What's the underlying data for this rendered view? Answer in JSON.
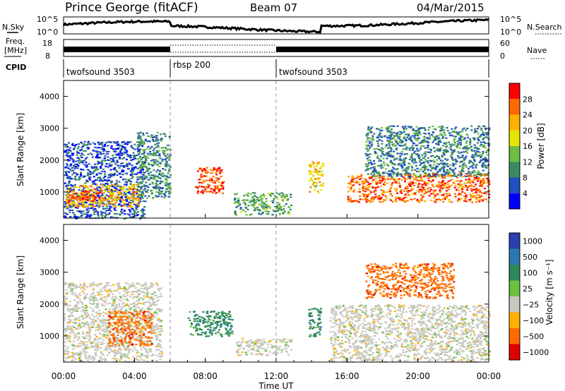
{
  "header": {
    "station": "Prince George (fitACF)",
    "beam": "Beam 07",
    "date": "04/Mar/2015"
  },
  "noise_panel": {
    "left_label": "N.Sky",
    "right_label": "N.Search",
    "left_ticks": [
      "10^5",
      "10^0"
    ],
    "right_ticks": [
      "10^5",
      "10^0"
    ]
  },
  "freq_panel": {
    "left_label": "Freq.",
    "left_unit": "[MHz]",
    "left_ticks": [
      "18",
      "8"
    ],
    "right_label": "Nave",
    "right_ticks": [
      "60",
      "0"
    ]
  },
  "cpid_panel": {
    "label": "CPID",
    "segments": [
      {
        "name": "twofsound 3503",
        "start": 0,
        "end": 6
      },
      {
        "name": "rbsp 200",
        "start": 6,
        "end": 12
      },
      {
        "name": "twofsound 3503",
        "start": 12,
        "end": 24
      }
    ]
  },
  "time_axis": {
    "label": "Time UT",
    "ticks": [
      "00:00",
      "04:00",
      "08:00",
      "12:00",
      "16:00",
      "20:00",
      "00:00"
    ]
  },
  "power_panel": {
    "ylabel": "Slant Range [km]",
    "yticks": [
      "1000",
      "2000",
      "3000",
      "4000"
    ],
    "colorbar_label": "Power [dB]",
    "colorbar_ticks": [
      "4",
      "8",
      "12",
      "16",
      "20",
      "24",
      "28"
    ],
    "colors": [
      "#0000ff",
      "#2050c0",
      "#3a8a60",
      "#6cbf40",
      "#e6e600",
      "#ffb000",
      "#ff6a00",
      "#ff0000"
    ]
  },
  "velocity_panel": {
    "ylabel": "Slant Range [km]",
    "yticks": [
      "1000",
      "2000",
      "3000",
      "4000"
    ],
    "colorbar_label": "Velocity [m s⁻¹]",
    "colorbar_ticks": [
      "1000",
      "500",
      "100",
      "25",
      "−25",
      "−100",
      "−500",
      "−1000"
    ],
    "colors": [
      "#2a3fb0",
      "#2a7ab0",
      "#2e8a5a",
      "#6cc040",
      "#c8c8c0",
      "#ffb000",
      "#ff6a00",
      "#e00000"
    ]
  },
  "chart_data": {
    "type": "heatmap",
    "x_range_hours": [
      0,
      24
    ],
    "y_range_km": [
      180,
      4500
    ],
    "power_regions": [
      {
        "t0": 0.0,
        "t1": 4.6,
        "r0": 180,
        "r1": 2600,
        "power_dB": 6
      },
      {
        "t0": 0.1,
        "t1": 4.2,
        "r0": 550,
        "r1": 1250,
        "power_dB": 22
      },
      {
        "t0": 0.2,
        "t1": 2.0,
        "r0": 700,
        "r1": 1050,
        "power_dB": 28
      },
      {
        "t0": 4.1,
        "t1": 6.0,
        "r0": 800,
        "r1": 2900,
        "power_dB": 10
      },
      {
        "t0": 7.4,
        "t1": 9.0,
        "r0": 950,
        "r1": 1800,
        "power_dB": 28
      },
      {
        "t0": 9.6,
        "t1": 12.8,
        "r0": 300,
        "r1": 1000,
        "power_dB": 12
      },
      {
        "t0": 13.8,
        "t1": 14.6,
        "r0": 1000,
        "r1": 2000,
        "power_dB": 20
      },
      {
        "t0": 16.0,
        "t1": 24.0,
        "r0": 700,
        "r1": 1600,
        "power_dB": 26
      },
      {
        "t0": 17.0,
        "t1": 24.0,
        "r0": 1500,
        "r1": 3100,
        "power_dB": 9
      }
    ],
    "velocity_regions": [
      {
        "t0": 0.0,
        "t1": 5.5,
        "r0": 200,
        "r1": 2700,
        "velocity_ms": 0
      },
      {
        "t0": 2.5,
        "t1": 5.0,
        "r0": 700,
        "r1": 1800,
        "velocity_ms": -300
      },
      {
        "t0": 7.0,
        "t1": 9.5,
        "r0": 1000,
        "r1": 1800,
        "velocity_ms": 200
      },
      {
        "t0": 9.7,
        "t1": 12.8,
        "r0": 400,
        "r1": 950,
        "velocity_ms": 0
      },
      {
        "t0": 13.8,
        "t1": 14.5,
        "r0": 1000,
        "r1": 1900,
        "velocity_ms": 100
      },
      {
        "t0": 15.0,
        "t1": 24.0,
        "r0": 200,
        "r1": 2000,
        "velocity_ms": 0
      },
      {
        "t0": 17.0,
        "t1": 22.0,
        "r0": 2200,
        "r1": 3300,
        "velocity_ms": -400
      }
    ]
  }
}
